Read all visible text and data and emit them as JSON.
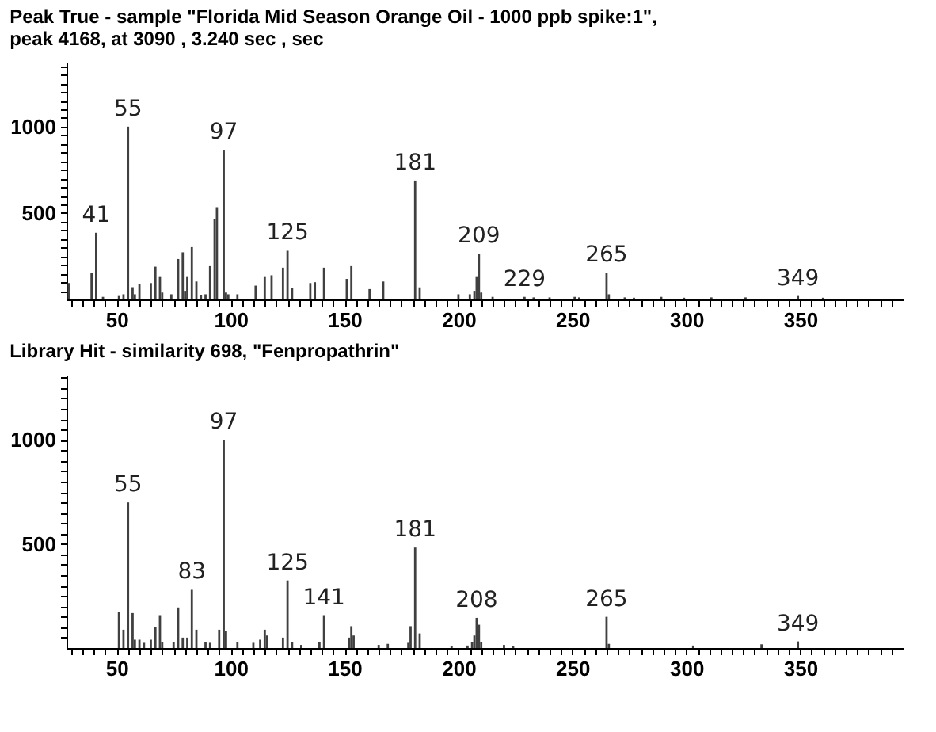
{
  "chart_data": [
    {
      "type": "bar",
      "title": "Peak True - sample \"Florida Mid Season Orange Oil - 1000 ppb spike:1\",\npeak 4168, at 3090 , 3.240 sec , sec",
      "color": "#404040",
      "x": [
        29,
        39,
        41,
        44,
        51,
        53,
        55,
        57,
        58,
        60,
        65,
        67,
        69,
        70,
        74,
        77,
        79,
        80,
        81,
        83,
        85,
        87,
        89,
        91,
        93,
        94,
        97,
        98,
        99,
        103,
        111,
        115,
        118,
        123,
        125,
        127,
        135,
        137,
        141,
        151,
        153,
        161,
        167,
        181,
        183,
        200,
        205,
        207,
        208,
        209,
        210,
        215,
        229,
        233,
        240,
        251,
        253,
        265,
        266,
        273,
        277,
        289,
        299,
        311,
        326,
        349,
        360
      ],
      "values": [
        95,
        154,
        386,
        15,
        20,
        30,
        1000,
        71,
        30,
        89,
        95,
        190,
        130,
        40,
        30,
        234,
        273,
        50,
        130,
        303,
        104,
        25,
        30,
        193,
        463,
        534,
        866,
        40,
        30,
        30,
        80,
        130,
        140,
        184,
        282,
        65,
        95,
        100,
        184,
        119,
        193,
        60,
        104,
        688,
        70,
        30,
        30,
        50,
        130,
        264,
        40,
        15,
        15,
        12,
        12,
        15,
        12,
        154,
        30,
        12,
        10,
        15,
        10,
        12,
        12,
        20,
        10
      ],
      "xlim": [
        28,
        395
      ],
      "ylim": [
        0,
        1375
      ],
      "xticks": [
        {
          "value": 30,
          "label": null
        },
        {
          "value": 35,
          "label": null
        },
        {
          "value": 40,
          "label": null
        },
        {
          "value": 45,
          "label": null
        },
        50,
        {
          "value": 55,
          "label": null
        },
        {
          "value": 60,
          "label": null
        },
        {
          "value": 65,
          "label": null
        },
        {
          "value": 70,
          "label": null
        },
        {
          "value": 75,
          "label": null
        },
        {
          "value": 80,
          "label": null
        },
        {
          "value": 85,
          "label": null
        },
        {
          "value": 90,
          "label": null
        },
        {
          "value": 95,
          "label": null
        },
        100,
        {
          "value": 105,
          "label": null
        },
        {
          "value": 110,
          "label": null
        },
        {
          "value": 115,
          "label": null
        },
        {
          "value": 120,
          "label": null
        },
        {
          "value": 125,
          "label": null
        },
        {
          "value": 130,
          "label": null
        },
        {
          "value": 135,
          "label": null
        },
        {
          "value": 140,
          "label": null
        },
        {
          "value": 145,
          "label": null
        },
        150,
        {
          "value": 155,
          "label": null
        },
        {
          "value": 160,
          "label": null
        },
        {
          "value": 165,
          "label": null
        },
        {
          "value": 170,
          "label": null
        },
        {
          "value": 175,
          "label": null
        },
        {
          "value": 180,
          "label": null
        },
        {
          "value": 185,
          "label": null
        },
        {
          "value": 190,
          "label": null
        },
        {
          "value": 195,
          "label": null
        },
        200,
        {
          "value": 205,
          "label": null
        },
        {
          "value": 210,
          "label": null
        },
        {
          "value": 215,
          "label": null
        },
        {
          "value": 220,
          "label": null
        },
        {
          "value": 225,
          "label": null
        },
        {
          "value": 230,
          "label": null
        },
        {
          "value": 235,
          "label": null
        },
        {
          "value": 240,
          "label": null
        },
        {
          "value": 245,
          "label": null
        },
        250,
        {
          "value": 255,
          "label": null
        },
        {
          "value": 260,
          "label": null
        },
        {
          "value": 265,
          "label": null
        },
        {
          "value": 270,
          "label": null
        },
        {
          "value": 275,
          "label": null
        },
        {
          "value": 280,
          "label": null
        },
        {
          "value": 285,
          "label": null
        },
        {
          "value": 290,
          "label": null
        },
        {
          "value": 295,
          "label": null
        },
        300,
        {
          "value": 305,
          "label": null
        },
        {
          "value": 310,
          "label": null
        },
        {
          "value": 315,
          "label": null
        },
        {
          "value": 320,
          "label": null
        },
        {
          "value": 325,
          "label": null
        },
        {
          "value": 330,
          "label": null
        },
        {
          "value": 335,
          "label": null
        },
        {
          "value": 340,
          "label": null
        },
        {
          "value": 345,
          "label": null
        },
        350,
        {
          "value": 355,
          "label": null
        },
        {
          "value": 360,
          "label": null
        },
        {
          "value": 365,
          "label": null
        },
        {
          "value": 370,
          "label": null
        },
        {
          "value": 375,
          "label": null
        },
        {
          "value": 380,
          "label": null
        },
        {
          "value": 385,
          "label": null
        },
        {
          "value": 390,
          "label": null
        }
      ],
      "yticks": [
        {
          "value": 50,
          "label": null
        },
        {
          "value": 100,
          "label": null
        },
        {
          "value": 150,
          "label": null
        },
        {
          "value": 200,
          "label": null
        },
        {
          "value": 250,
          "label": null
        },
        {
          "value": 300,
          "label": null
        },
        {
          "value": 350,
          "label": null
        },
        {
          "value": 400,
          "label": null
        },
        {
          "value": 450,
          "label": null
        },
        500,
        {
          "value": 550,
          "label": null
        },
        {
          "value": 600,
          "label": null
        },
        {
          "value": 650,
          "label": null
        },
        {
          "value": 700,
          "label": null
        },
        {
          "value": 750,
          "label": null
        },
        {
          "value": 800,
          "label": null
        },
        {
          "value": 850,
          "label": null
        },
        {
          "value": 900,
          "label": null
        },
        {
          "value": 950,
          "label": null
        },
        1000,
        {
          "value": 1050,
          "label": null
        },
        {
          "value": 1100,
          "label": null
        },
        {
          "value": 1150,
          "label": null
        },
        {
          "value": 1200,
          "label": null
        },
        {
          "value": 1250,
          "label": null
        },
        {
          "value": 1300,
          "label": null
        },
        {
          "value": 1350,
          "label": null
        }
      ],
      "annotations": [
        {
          "text": "41",
          "x": 41,
          "y": 386
        },
        {
          "text": "55",
          "x": 55,
          "y": 1000
        },
        {
          "text": "97",
          "x": 97,
          "y": 866
        },
        {
          "text": "125",
          "x": 125,
          "y": 282
        },
        {
          "text": "181",
          "x": 181,
          "y": 688
        },
        {
          "text": "209",
          "x": 209,
          "y": 264
        },
        {
          "text": "229",
          "x": 229,
          "y": 15
        },
        {
          "text": "265",
          "x": 265,
          "y": 154
        },
        {
          "text": "349",
          "x": 349,
          "y": 20
        }
      ]
    },
    {
      "type": "bar",
      "title": "Library Hit - similarity 698, \"Fenpropathrin\"",
      "color": "#404040",
      "x": [
        51,
        53,
        55,
        57,
        58,
        60,
        62,
        65,
        67,
        69,
        70,
        75,
        77,
        79,
        81,
        83,
        85,
        89,
        91,
        95,
        97,
        98,
        103,
        110,
        113,
        115,
        116,
        123,
        125,
        127,
        131,
        139,
        141,
        152,
        153,
        154,
        165,
        169,
        178,
        179,
        181,
        183,
        197,
        204,
        206,
        207,
        208,
        209,
        210,
        220,
        224,
        265,
        266,
        303,
        333,
        349
      ],
      "values": [
        175,
        88,
        700,
        168,
        40,
        40,
        25,
        40,
        100,
        158,
        30,
        30,
        195,
        50,
        50,
        280,
        88,
        30,
        25,
        88,
        1000,
        80,
        30,
        25,
        40,
        88,
        60,
        50,
        325,
        30,
        15,
        30,
        158,
        50,
        105,
        60,
        15,
        20,
        25,
        105,
        483,
        70,
        10,
        12,
        30,
        60,
        145,
        112,
        30,
        15,
        10,
        150,
        20,
        12,
        18,
        32
      ],
      "xlim": [
        28,
        395
      ],
      "ylim": [
        0,
        1310
      ],
      "xticks": [
        {
          "value": 30,
          "label": null
        },
        {
          "value": 35,
          "label": null
        },
        {
          "value": 40,
          "label": null
        },
        {
          "value": 45,
          "label": null
        },
        50,
        {
          "value": 55,
          "label": null
        },
        {
          "value": 60,
          "label": null
        },
        {
          "value": 65,
          "label": null
        },
        {
          "value": 70,
          "label": null
        },
        {
          "value": 75,
          "label": null
        },
        {
          "value": 80,
          "label": null
        },
        {
          "value": 85,
          "label": null
        },
        {
          "value": 90,
          "label": null
        },
        {
          "value": 95,
          "label": null
        },
        100,
        {
          "value": 105,
          "label": null
        },
        {
          "value": 110,
          "label": null
        },
        {
          "value": 115,
          "label": null
        },
        {
          "value": 120,
          "label": null
        },
        {
          "value": 125,
          "label": null
        },
        {
          "value": 130,
          "label": null
        },
        {
          "value": 135,
          "label": null
        },
        {
          "value": 140,
          "label": null
        },
        {
          "value": 145,
          "label": null
        },
        150,
        {
          "value": 155,
          "label": null
        },
        {
          "value": 160,
          "label": null
        },
        {
          "value": 165,
          "label": null
        },
        {
          "value": 170,
          "label": null
        },
        {
          "value": 175,
          "label": null
        },
        {
          "value": 180,
          "label": null
        },
        {
          "value": 185,
          "label": null
        },
        {
          "value": 190,
          "label": null
        },
        {
          "value": 195,
          "label": null
        },
        200,
        {
          "value": 205,
          "label": null
        },
        {
          "value": 210,
          "label": null
        },
        {
          "value": 215,
          "label": null
        },
        {
          "value": 220,
          "label": null
        },
        {
          "value": 225,
          "label": null
        },
        {
          "value": 230,
          "label": null
        },
        {
          "value": 235,
          "label": null
        },
        {
          "value": 240,
          "label": null
        },
        {
          "value": 245,
          "label": null
        },
        250,
        {
          "value": 255,
          "label": null
        },
        {
          "value": 260,
          "label": null
        },
        {
          "value": 265,
          "label": null
        },
        {
          "value": 270,
          "label": null
        },
        {
          "value": 275,
          "label": null
        },
        {
          "value": 280,
          "label": null
        },
        {
          "value": 285,
          "label": null
        },
        {
          "value": 290,
          "label": null
        },
        {
          "value": 295,
          "label": null
        },
        300,
        {
          "value": 305,
          "label": null
        },
        {
          "value": 310,
          "label": null
        },
        {
          "value": 315,
          "label": null
        },
        {
          "value": 320,
          "label": null
        },
        {
          "value": 325,
          "label": null
        },
        {
          "value": 330,
          "label": null
        },
        {
          "value": 335,
          "label": null
        },
        {
          "value": 340,
          "label": null
        },
        {
          "value": 345,
          "label": null
        },
        350,
        {
          "value": 355,
          "label": null
        },
        {
          "value": 360,
          "label": null
        },
        {
          "value": 365,
          "label": null
        },
        {
          "value": 370,
          "label": null
        },
        {
          "value": 375,
          "label": null
        },
        {
          "value": 380,
          "label": null
        },
        {
          "value": 385,
          "label": null
        },
        {
          "value": 390,
          "label": null
        }
      ],
      "yticks": [
        {
          "value": 50,
          "label": null
        },
        {
          "value": 100,
          "label": null
        },
        {
          "value": 150,
          "label": null
        },
        {
          "value": 200,
          "label": null
        },
        {
          "value": 250,
          "label": null
        },
        {
          "value": 300,
          "label": null
        },
        {
          "value": 350,
          "label": null
        },
        {
          "value": 400,
          "label": null
        },
        {
          "value": 450,
          "label": null
        },
        500,
        {
          "value": 550,
          "label": null
        },
        {
          "value": 600,
          "label": null
        },
        {
          "value": 650,
          "label": null
        },
        {
          "value": 700,
          "label": null
        },
        {
          "value": 750,
          "label": null
        },
        {
          "value": 800,
          "label": null
        },
        {
          "value": 850,
          "label": null
        },
        {
          "value": 900,
          "label": null
        },
        {
          "value": 950,
          "label": null
        },
        1000,
        {
          "value": 1050,
          "label": null
        },
        {
          "value": 1100,
          "label": null
        },
        {
          "value": 1150,
          "label": null
        },
        {
          "value": 1200,
          "label": null
        },
        {
          "value": 1250,
          "label": null
        },
        {
          "value": 1300,
          "label": null
        }
      ],
      "annotations": [
        {
          "text": "55",
          "x": 55,
          "y": 700
        },
        {
          "text": "83",
          "x": 83,
          "y": 280
        },
        {
          "text": "97",
          "x": 97,
          "y": 1000
        },
        {
          "text": "125",
          "x": 125,
          "y": 325
        },
        {
          "text": "141",
          "x": 141,
          "y": 158
        },
        {
          "text": "181",
          "x": 181,
          "y": 483
        },
        {
          "text": "208",
          "x": 208,
          "y": 145
        },
        {
          "text": "265",
          "x": 265,
          "y": 150
        },
        {
          "text": "349",
          "x": 349,
          "y": 32
        }
      ]
    }
  ]
}
